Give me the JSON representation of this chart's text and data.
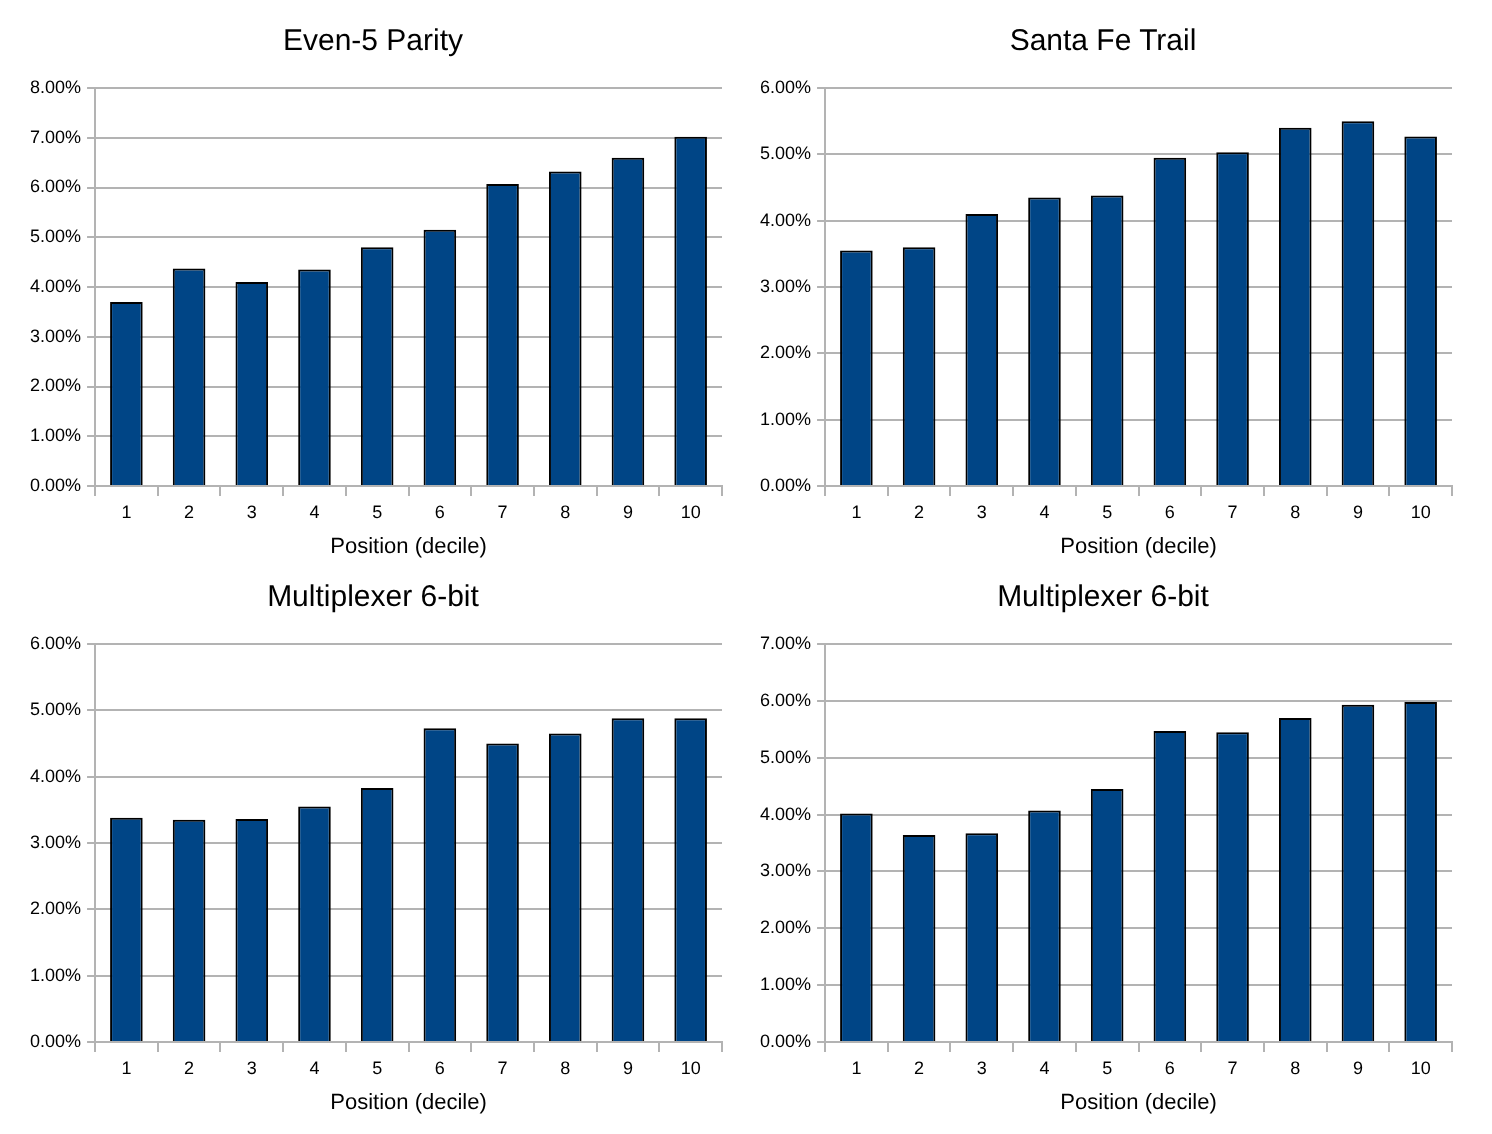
{
  "chart_data": [
    {
      "type": "bar",
      "title": "Even-5 Parity",
      "xlabel": "Position (decile)",
      "categories": [
        "1",
        "2",
        "3",
        "4",
        "5",
        "6",
        "7",
        "8",
        "9",
        "10"
      ],
      "values": [
        3.7,
        4.37,
        4.1,
        4.35,
        4.8,
        5.15,
        6.07,
        6.32,
        6.6,
        7.02
      ],
      "color": "#004586",
      "ylim": [
        0,
        8
      ],
      "yticks": [
        {
          "value": 0,
          "label": "0.00%"
        },
        {
          "value": 1,
          "label": "1.00%"
        },
        {
          "value": 2,
          "label": "2.00%"
        },
        {
          "value": 3,
          "label": "3.00%"
        },
        {
          "value": 4,
          "label": "4.00%"
        },
        {
          "value": 5,
          "label": "5.00%"
        },
        {
          "value": 6,
          "label": "6.00%"
        },
        {
          "value": 7,
          "label": "7.00%"
        },
        {
          "value": 8,
          "label": "8.00%"
        }
      ],
      "grid": "y",
      "legend": false
    },
    {
      "type": "bar",
      "title": "Santa Fe Trail",
      "xlabel": "Position (decile)",
      "categories": [
        "1",
        "2",
        "3",
        "4",
        "5",
        "6",
        "7",
        "8",
        "9",
        "10"
      ],
      "values": [
        3.55,
        3.6,
        4.1,
        4.35,
        4.38,
        4.95,
        5.03,
        5.4,
        5.5,
        5.27
      ],
      "color": "#004586",
      "ylim": [
        0,
        6
      ],
      "yticks": [
        {
          "value": 0,
          "label": "0.00%"
        },
        {
          "value": 1,
          "label": "1.00%"
        },
        {
          "value": 2,
          "label": "2.00%"
        },
        {
          "value": 3,
          "label": "3.00%"
        },
        {
          "value": 4,
          "label": "4.00%"
        },
        {
          "value": 5,
          "label": "5.00%"
        },
        {
          "value": 6,
          "label": "6.00%"
        }
      ],
      "grid": "y",
      "legend": false
    },
    {
      "type": "bar",
      "title": "Multiplexer 6-bit",
      "xlabel": "Position (decile)",
      "categories": [
        "1",
        "2",
        "3",
        "4",
        "5",
        "6",
        "7",
        "8",
        "9",
        "10"
      ],
      "values": [
        3.38,
        3.35,
        3.36,
        3.55,
        3.83,
        4.73,
        4.5,
        4.65,
        4.88,
        4.88
      ],
      "color": "#004586",
      "ylim": [
        0,
        6
      ],
      "yticks": [
        {
          "value": 0,
          "label": "0.00%"
        },
        {
          "value": 1,
          "label": "1.00%"
        },
        {
          "value": 2,
          "label": "2.00%"
        },
        {
          "value": 3,
          "label": "3.00%"
        },
        {
          "value": 4,
          "label": "4.00%"
        },
        {
          "value": 5,
          "label": "5.00%"
        },
        {
          "value": 6,
          "label": "6.00%"
        }
      ],
      "grid": "y",
      "legend": false
    },
    {
      "type": "bar",
      "title": "Multiplexer 6-bit",
      "xlabel": "Position (decile)",
      "categories": [
        "1",
        "2",
        "3",
        "4",
        "5",
        "6",
        "7",
        "8",
        "9",
        "10"
      ],
      "values": [
        4.02,
        3.64,
        3.67,
        4.07,
        4.45,
        5.47,
        5.45,
        5.7,
        5.93,
        5.98
      ],
      "color": "#004586",
      "ylim": [
        0,
        7
      ],
      "yticks": [
        {
          "value": 0,
          "label": "0.00%"
        },
        {
          "value": 1,
          "label": "1.00%"
        },
        {
          "value": 2,
          "label": "2.00%"
        },
        {
          "value": 3,
          "label": "3.00%"
        },
        {
          "value": 4,
          "label": "4.00%"
        },
        {
          "value": 5,
          "label": "5.00%"
        },
        {
          "value": 6,
          "label": "6.00%"
        },
        {
          "value": 7,
          "label": "7.00%"
        }
      ],
      "grid": "y",
      "legend": false
    }
  ]
}
